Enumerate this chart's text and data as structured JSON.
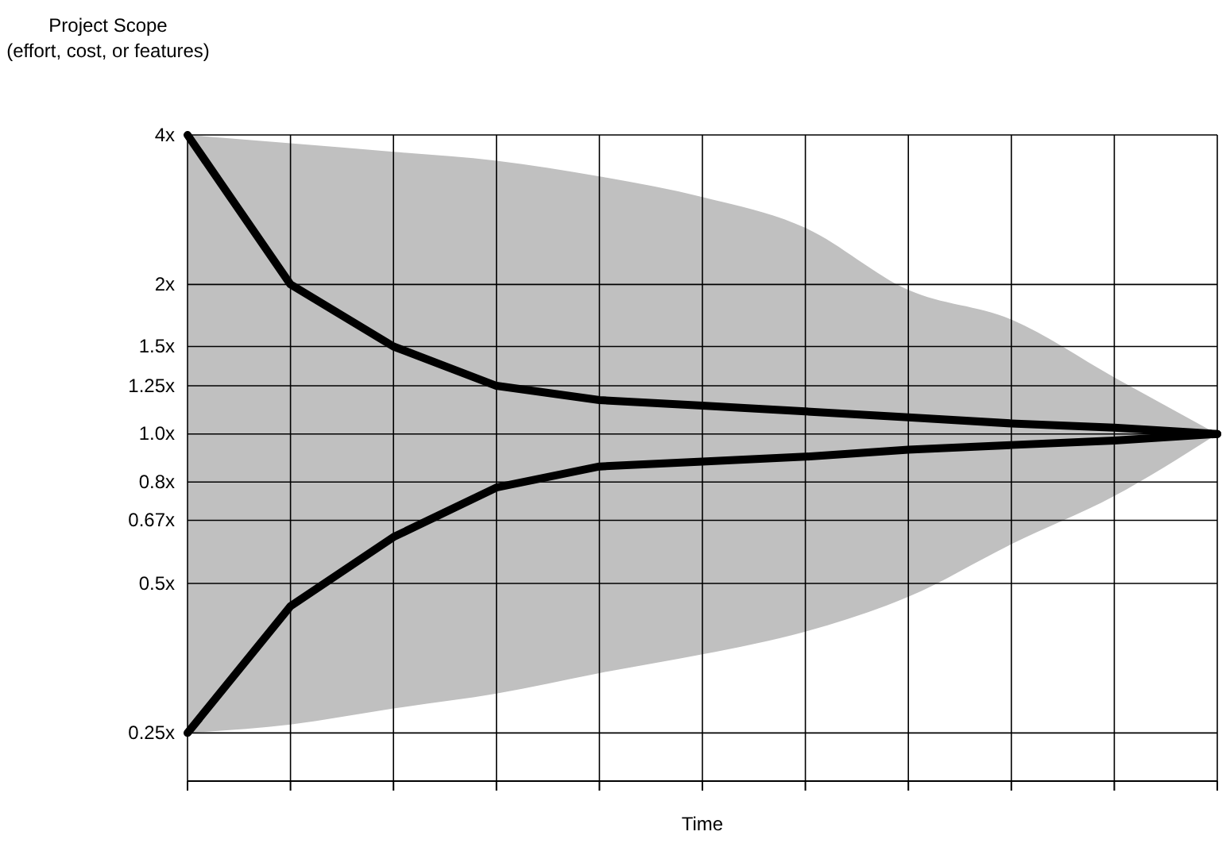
{
  "chart_data": {
    "type": "line",
    "xlabel": "Time",
    "ylabel": "Project Scope\n(effort, cost, or features)",
    "categories": [
      null,
      null,
      null,
      null,
      null,
      null,
      null,
      null,
      null,
      null,
      null
    ],
    "series": [
      {
        "color": "#000000",
        "values": [
          4,
          2,
          1.5,
          1.25,
          1.17,
          1.14,
          1.11,
          1.08,
          1.05,
          1.03,
          1.0
        ],
        "upper": [
          4,
          3.85,
          3.7,
          3.55,
          3.3,
          3.0,
          2.6,
          1.95,
          1.7,
          1.3,
          1.0
        ],
        "lower": [
          0.25,
          0.26,
          0.28,
          0.3,
          0.33,
          0.36,
          0.4,
          0.47,
          0.6,
          0.75,
          1.0
        ]
      },
      {
        "color": "#000000",
        "values": [
          0.25,
          0.45,
          0.62,
          0.78,
          0.86,
          0.88,
          0.9,
          0.93,
          0.95,
          0.97,
          1.0
        ]
      }
    ],
    "log": "y",
    "ylim": [
      0.2,
      4
    ],
    "yticks": [
      {
        "value": 4,
        "label": "4x"
      },
      {
        "value": 2,
        "label": "2x"
      },
      {
        "value": 1.5,
        "label": "1.5x"
      },
      {
        "value": 1.25,
        "label": "1.25x"
      },
      {
        "value": 1,
        "label": "1.0x"
      },
      {
        "value": 0.8,
        "label": "0.8x"
      },
      {
        "value": 0.67,
        "label": "0.67x"
      },
      {
        "value": 0.5,
        "label": "0.5x"
      },
      {
        "value": 0.25,
        "label": "0.25x"
      }
    ],
    "grid": true,
    "marker": "none",
    "line_style": "solid"
  }
}
